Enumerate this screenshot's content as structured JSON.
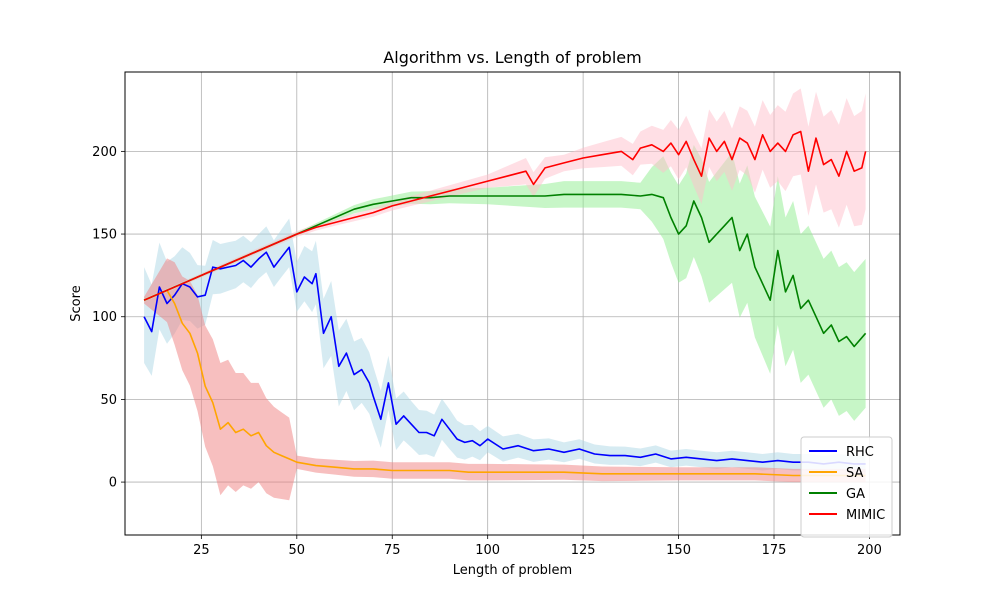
{
  "chart_data": {
    "type": "line",
    "title": "Algorithm vs. Length of problem",
    "xlabel": "Length of problem",
    "ylabel": "Score",
    "xlim": [
      5,
      208
    ],
    "ylim": [
      -32,
      248
    ],
    "xticks": [
      25,
      50,
      75,
      100,
      125,
      150,
      175,
      200
    ],
    "yticks": [
      0,
      50,
      100,
      150,
      200
    ],
    "grid": true,
    "legend_position": "lower-right",
    "series": [
      {
        "name": "RHC",
        "color": "#0000ff",
        "band_color": "#add8e6",
        "points": [
          [
            10,
            100
          ],
          [
            12,
            91
          ],
          [
            14,
            118
          ],
          [
            16,
            108
          ],
          [
            18,
            113
          ],
          [
            20,
            120
          ],
          [
            22,
            118
          ],
          [
            24,
            112
          ],
          [
            26,
            113
          ],
          [
            28,
            130
          ],
          [
            30,
            129
          ],
          [
            32,
            130
          ],
          [
            34,
            131
          ],
          [
            36,
            134
          ],
          [
            38,
            130
          ],
          [
            40,
            135
          ],
          [
            42,
            139
          ],
          [
            44,
            130
          ],
          [
            46,
            136
          ],
          [
            48,
            142
          ],
          [
            50,
            115
          ],
          [
            52,
            124
          ],
          [
            54,
            120
          ],
          [
            55,
            126
          ],
          [
            57,
            90
          ],
          [
            59,
            100
          ],
          [
            61,
            70
          ],
          [
            63,
            78
          ],
          [
            65,
            65
          ],
          [
            67,
            68
          ],
          [
            69,
            60
          ],
          [
            70,
            52
          ],
          [
            72,
            38
          ],
          [
            74,
            60
          ],
          [
            76,
            35
          ],
          [
            78,
            40
          ],
          [
            80,
            35
          ],
          [
            82,
            30
          ],
          [
            84,
            30
          ],
          [
            86,
            28
          ],
          [
            88,
            38
          ],
          [
            90,
            32
          ],
          [
            92,
            26
          ],
          [
            94,
            24
          ],
          [
            96,
            25
          ],
          [
            98,
            22
          ],
          [
            100,
            26
          ],
          [
            104,
            20
          ],
          [
            108,
            22
          ],
          [
            112,
            19
          ],
          [
            116,
            20
          ],
          [
            120,
            18
          ],
          [
            124,
            20
          ],
          [
            128,
            17
          ],
          [
            132,
            16
          ],
          [
            136,
            16
          ],
          [
            140,
            15
          ],
          [
            144,
            17
          ],
          [
            148,
            14
          ],
          [
            152,
            15
          ],
          [
            156,
            14
          ],
          [
            160,
            13
          ],
          [
            164,
            14
          ],
          [
            168,
            13
          ],
          [
            172,
            12
          ],
          [
            176,
            13
          ],
          [
            180,
            12
          ],
          [
            184,
            12
          ],
          [
            188,
            11
          ],
          [
            192,
            12
          ],
          [
            196,
            11
          ],
          [
            199,
            11
          ]
        ],
        "band": [
          [
            10,
            -28,
            30
          ],
          [
            20,
            -22,
            22
          ],
          [
            30,
            -15,
            15
          ],
          [
            40,
            -12,
            15
          ],
          [
            50,
            -12,
            18
          ],
          [
            60,
            -25,
            22
          ],
          [
            70,
            -18,
            18
          ],
          [
            80,
            -14,
            14
          ],
          [
            90,
            -12,
            12
          ],
          [
            100,
            -8,
            8
          ],
          [
            120,
            -6,
            6
          ],
          [
            150,
            -5,
            5
          ],
          [
            199,
            -5,
            5
          ]
        ]
      },
      {
        "name": "SA",
        "color": "#ffa500",
        "band_color": "#f08080",
        "points": [
          [
            10,
            110
          ],
          [
            12,
            112
          ],
          [
            14,
            114
          ],
          [
            16,
            116
          ],
          [
            18,
            108
          ],
          [
            20,
            96
          ],
          [
            22,
            90
          ],
          [
            24,
            78
          ],
          [
            26,
            58
          ],
          [
            28,
            48
          ],
          [
            30,
            32
          ],
          [
            32,
            36
          ],
          [
            34,
            30
          ],
          [
            36,
            32
          ],
          [
            38,
            28
          ],
          [
            40,
            30
          ],
          [
            42,
            22
          ],
          [
            44,
            18
          ],
          [
            46,
            16
          ],
          [
            48,
            14
          ],
          [
            50,
            12
          ],
          [
            55,
            10
          ],
          [
            60,
            9
          ],
          [
            65,
            8
          ],
          [
            70,
            8
          ],
          [
            75,
            7
          ],
          [
            80,
            7
          ],
          [
            85,
            7
          ],
          [
            90,
            7
          ],
          [
            95,
            6
          ],
          [
            100,
            6
          ],
          [
            110,
            6
          ],
          [
            120,
            6
          ],
          [
            130,
            5
          ],
          [
            140,
            5
          ],
          [
            150,
            5
          ],
          [
            160,
            5
          ],
          [
            170,
            5
          ],
          [
            180,
            4
          ],
          [
            190,
            4
          ],
          [
            199,
            4
          ]
        ],
        "band": [
          [
            10,
            -2,
            2
          ],
          [
            18,
            -25,
            25
          ],
          [
            24,
            -35,
            35
          ],
          [
            30,
            -40,
            40
          ],
          [
            40,
            -30,
            30
          ],
          [
            48,
            -25,
            25
          ],
          [
            50,
            -4,
            4
          ],
          [
            70,
            -5,
            5
          ],
          [
            100,
            -5,
            5
          ],
          [
            150,
            -4,
            4
          ],
          [
            199,
            -4,
            4
          ]
        ]
      },
      {
        "name": "GA",
        "color": "#008000",
        "band_color": "#90ee90",
        "points": [
          [
            10,
            110
          ],
          [
            20,
            120
          ],
          [
            30,
            130
          ],
          [
            40,
            140
          ],
          [
            50,
            150
          ],
          [
            55,
            155
          ],
          [
            60,
            160
          ],
          [
            65,
            165
          ],
          [
            70,
            168
          ],
          [
            75,
            170
          ],
          [
            80,
            172
          ],
          [
            85,
            172
          ],
          [
            90,
            173
          ],
          [
            95,
            173
          ],
          [
            100,
            173
          ],
          [
            105,
            173
          ],
          [
            110,
            173
          ],
          [
            115,
            173
          ],
          [
            120,
            174
          ],
          [
            125,
            174
          ],
          [
            130,
            174
          ],
          [
            135,
            174
          ],
          [
            140,
            173
          ],
          [
            143,
            174
          ],
          [
            146,
            172
          ],
          [
            148,
            160
          ],
          [
            150,
            150
          ],
          [
            152,
            155
          ],
          [
            154,
            170
          ],
          [
            156,
            160
          ],
          [
            158,
            145
          ],
          [
            160,
            150
          ],
          [
            162,
            155
          ],
          [
            164,
            160
          ],
          [
            166,
            140
          ],
          [
            168,
            150
          ],
          [
            170,
            130
          ],
          [
            172,
            120
          ],
          [
            174,
            110
          ],
          [
            176,
            140
          ],
          [
            178,
            115
          ],
          [
            180,
            125
          ],
          [
            182,
            105
          ],
          [
            184,
            110
          ],
          [
            186,
            100
          ],
          [
            188,
            90
          ],
          [
            190,
            95
          ],
          [
            192,
            85
          ],
          [
            194,
            88
          ],
          [
            196,
            82
          ],
          [
            199,
            90
          ]
        ],
        "band": [
          [
            10,
            -1,
            1
          ],
          [
            50,
            -1,
            1
          ],
          [
            70,
            -3,
            3
          ],
          [
            100,
            -5,
            5
          ],
          [
            120,
            -8,
            8
          ],
          [
            140,
            -8,
            8
          ],
          [
            146,
            -25,
            25
          ],
          [
            155,
            -35,
            35
          ],
          [
            165,
            -40,
            40
          ],
          [
            175,
            -45,
            45
          ],
          [
            185,
            -45,
            45
          ],
          [
            199,
            -45,
            45
          ]
        ]
      },
      {
        "name": "MIMIC",
        "color": "#ff0000",
        "band_color": "#ffc0cb",
        "points": [
          [
            10,
            110
          ],
          [
            20,
            120
          ],
          [
            30,
            130
          ],
          [
            40,
            140
          ],
          [
            50,
            150
          ],
          [
            55,
            154
          ],
          [
            60,
            157
          ],
          [
            65,
            160
          ],
          [
            70,
            163
          ],
          [
            75,
            167
          ],
          [
            80,
            170
          ],
          [
            85,
            173
          ],
          [
            90,
            176
          ],
          [
            95,
            179
          ],
          [
            100,
            182
          ],
          [
            105,
            185
          ],
          [
            110,
            188
          ],
          [
            112,
            180
          ],
          [
            115,
            190
          ],
          [
            120,
            193
          ],
          [
            125,
            196
          ],
          [
            130,
            198
          ],
          [
            135,
            200
          ],
          [
            138,
            195
          ],
          [
            140,
            202
          ],
          [
            143,
            204
          ],
          [
            146,
            200
          ],
          [
            148,
            205
          ],
          [
            150,
            198
          ],
          [
            152,
            206
          ],
          [
            154,
            195
          ],
          [
            156,
            185
          ],
          [
            158,
            208
          ],
          [
            160,
            200
          ],
          [
            162,
            206
          ],
          [
            164,
            195
          ],
          [
            166,
            208
          ],
          [
            168,
            205
          ],
          [
            170,
            195
          ],
          [
            172,
            210
          ],
          [
            174,
            200
          ],
          [
            176,
            205
          ],
          [
            178,
            200
          ],
          [
            180,
            210
          ],
          [
            182,
            212
          ],
          [
            184,
            188
          ],
          [
            186,
            208
          ],
          [
            188,
            192
          ],
          [
            190,
            195
          ],
          [
            192,
            185
          ],
          [
            194,
            200
          ],
          [
            196,
            188
          ],
          [
            198,
            190
          ],
          [
            199,
            200
          ]
        ],
        "band": [
          [
            10,
            -1,
            1
          ],
          [
            60,
            -2,
            2
          ],
          [
            100,
            -4,
            4
          ],
          [
            110,
            -8,
            8
          ],
          [
            120,
            -5,
            5
          ],
          [
            140,
            -10,
            10
          ],
          [
            150,
            -15,
            15
          ],
          [
            160,
            -18,
            18
          ],
          [
            170,
            -20,
            20
          ],
          [
            180,
            -25,
            25
          ],
          [
            190,
            -30,
            30
          ],
          [
            199,
            -35,
            35
          ]
        ]
      }
    ]
  }
}
